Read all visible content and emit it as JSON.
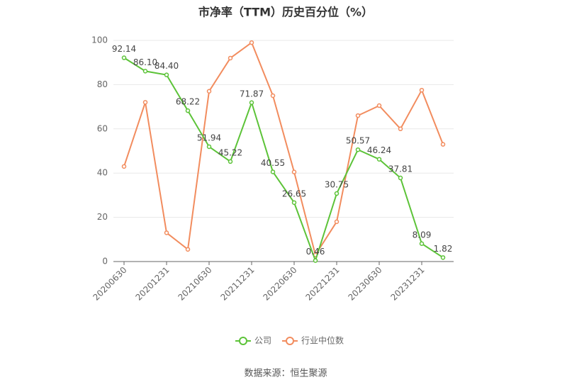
{
  "chart_data": {
    "type": "line",
    "title": "市净率（TTM）历史百分位（%）",
    "categories": [
      "20200630",
      null,
      "20201231",
      null,
      "20210630",
      null,
      "20211231",
      null,
      "20220630",
      null,
      "20221231",
      null,
      "20230630",
      null,
      "20231231",
      null
    ],
    "series": [
      {
        "name": "公司",
        "color": "#5cc338",
        "values": [
          92.14,
          86.1,
          84.4,
          68.22,
          51.94,
          45.22,
          71.87,
          40.55,
          26.65,
          0.46,
          30.75,
          50.57,
          46.24,
          37.81,
          8.09,
          1.82
        ],
        "value_labels": [
          "92.14",
          "86.10",
          "84.40",
          "68.22",
          "51.94",
          "45.22",
          "71.87",
          "40.55",
          "26.65",
          "0.46",
          "30.75",
          "50.57",
          "46.24",
          "37.81",
          "8.09",
          "1.82"
        ]
      },
      {
        "name": "行业中位数",
        "color": "#f28c5e",
        "values": [
          43,
          72,
          13,
          5.5,
          77,
          92,
          99,
          75,
          40.5,
          3,
          18,
          66,
          70.5,
          60,
          77.5,
          53
        ]
      }
    ],
    "ylim": [
      0,
      100
    ],
    "yticks": [
      0,
      20,
      40,
      60,
      80,
      100
    ],
    "grid": true,
    "source": "数据来源：恒生聚源"
  }
}
